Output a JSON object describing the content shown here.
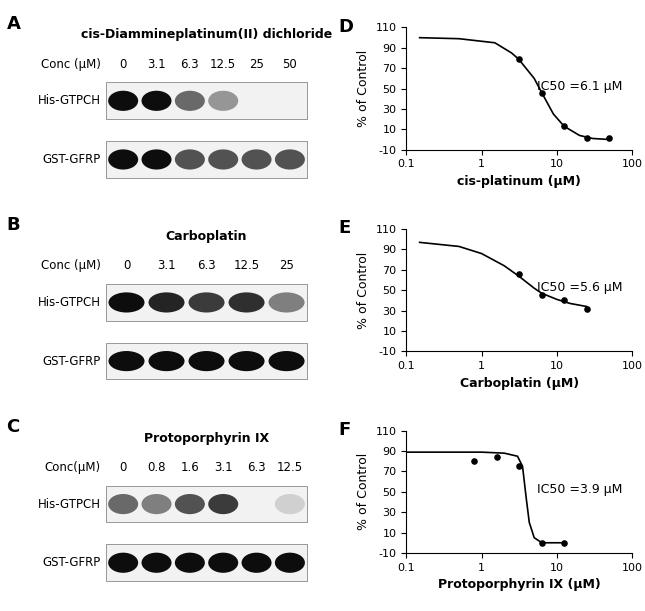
{
  "chart_data": [
    {
      "type": "blot",
      "panel": "A",
      "title": "cis-Diammineplatinum(II) dichloride",
      "conc_label": "Conc (μM)",
      "categories": [
        "0",
        "3.1",
        "6.3",
        "12.5",
        "25",
        "50"
      ],
      "series": [
        {
          "name": "His-GTPCH",
          "values": [
            1.0,
            1.0,
            0.6,
            0.4,
            0.0,
            0.0
          ]
        },
        {
          "name": "GST-GFRP",
          "values": [
            1.0,
            1.0,
            0.7,
            0.7,
            0.7,
            0.7
          ]
        }
      ]
    },
    {
      "type": "blot",
      "panel": "B",
      "title": "Carboplatin",
      "conc_label": "Conc (μM)",
      "categories": [
        "0",
        "3.1",
        "6.3",
        "12.5",
        "25"
      ],
      "series": [
        {
          "name": "His-GTPCH",
          "values": [
            1.0,
            0.9,
            0.8,
            0.85,
            0.5
          ]
        },
        {
          "name": "GST-GFRP",
          "values": [
            1.0,
            1.0,
            1.0,
            1.0,
            1.0
          ]
        }
      ]
    },
    {
      "type": "blot",
      "panel": "C",
      "title": "Protoporphyrin IX",
      "conc_label": "Conc(μM)",
      "categories": [
        "0",
        "0.8",
        "1.6",
        "3.1",
        "6.3",
        "12.5"
      ],
      "series": [
        {
          "name": "His-GTPCH",
          "values": [
            0.6,
            0.5,
            0.7,
            0.8,
            0.0,
            0.15
          ]
        },
        {
          "name": "GST-GFRP",
          "values": [
            1.0,
            1.0,
            1.0,
            1.0,
            1.0,
            1.0
          ]
        }
      ]
    },
    {
      "type": "scatter",
      "panel": "D",
      "x_label": "cis-platinum (μM)",
      "y_label": "% of Control",
      "log": "x",
      "xlim": [
        0.1,
        100
      ],
      "xticks": [
        0.1,
        1,
        10,
        100
      ],
      "ylim": [
        -10,
        110
      ],
      "yticks": [
        -10,
        10,
        30,
        50,
        70,
        90,
        110
      ],
      "annotation": "IC50 =6.1 μM",
      "series": [
        {
          "type": "scatter",
          "marker": "o",
          "color": "#000000",
          "x": [
            3.1,
            6.3,
            12.5,
            25,
            50
          ],
          "values": [
            79,
            46,
            13,
            1,
            1
          ]
        },
        {
          "type": "line",
          "color": "#000000",
          "x": [
            0.15,
            0.5,
            1.5,
            2.5,
            3.1,
            5,
            6.3,
            9,
            12.5,
            20,
            30,
            50
          ],
          "values": [
            100,
            99,
            95,
            85,
            79,
            60,
            46,
            25,
            13,
            4,
            1,
            0
          ]
        }
      ]
    },
    {
      "type": "scatter",
      "panel": "E",
      "x_label": "Carboplatin (μM)",
      "y_label": "% of Control",
      "log": "x",
      "xlim": [
        0.1,
        100
      ],
      "xticks": [
        0.1,
        1,
        10,
        100
      ],
      "ylim": [
        -10,
        110
      ],
      "yticks": [
        -10,
        10,
        30,
        50,
        70,
        90,
        110
      ],
      "annotation": "IC50 =5.6 μM",
      "series": [
        {
          "type": "scatter",
          "marker": "o",
          "color": "#000000",
          "x": [
            3.1,
            6.3,
            12.5,
            25
          ],
          "values": [
            66,
            45,
            40,
            32
          ]
        },
        {
          "type": "line",
          "color": "#000000",
          "x": [
            0.15,
            0.5,
            1,
            2,
            3.1,
            5,
            6.3,
            10,
            15,
            25
          ],
          "values": [
            97,
            93,
            86,
            74,
            64,
            52,
            47,
            41,
            37,
            34
          ]
        }
      ]
    },
    {
      "type": "scatter",
      "panel": "F",
      "x_label": "Protoporphyrin IX (μM)",
      "y_label": "% of Control",
      "log": "x",
      "xlim": [
        0.1,
        100
      ],
      "xticks": [
        0.1,
        1,
        10,
        100
      ],
      "ylim": [
        -10,
        110
      ],
      "yticks": [
        -10,
        10,
        30,
        50,
        70,
        90,
        110
      ],
      "annotation": "IC50 =3.9 μM",
      "series": [
        {
          "type": "scatter",
          "marker": "o",
          "color": "#000000",
          "x": [
            0.8,
            1.6,
            3.1,
            6.3,
            12.5
          ],
          "values": [
            80,
            84,
            75,
            0,
            0
          ]
        },
        {
          "type": "line",
          "color": "#000000",
          "x": [
            0.1,
            1,
            2,
            3,
            3.5,
            3.9,
            4.3,
            5,
            6.3,
            12.5
          ],
          "values": [
            89,
            89,
            88,
            85,
            75,
            45,
            20,
            5,
            0,
            0
          ]
        }
      ]
    }
  ]
}
